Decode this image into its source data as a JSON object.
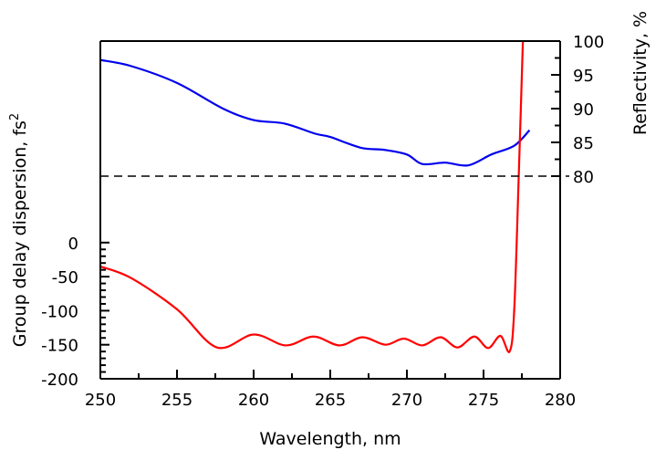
{
  "chart_data": {
    "type": "line",
    "title": "",
    "xlabel": "Wavelength, nm",
    "ylabel_left": "Group delay dispersion, fs",
    "ylabel_left_sup": "2",
    "ylabel_right": "Reflectivity, %",
    "xlim": [
      250,
      280
    ],
    "ylim_left": [
      -200,
      296
    ],
    "ylim_right": [
      80,
      100
    ],
    "x_ticks": [
      "250",
      "255",
      "260",
      "265",
      "270",
      "275",
      "280"
    ],
    "left_ticks": [
      "0",
      "-50",
      "-100",
      "-150",
      "-200"
    ],
    "right_ticks": [
      "100",
      "95",
      "90",
      "85",
      "80"
    ],
    "reference_line": {
      "axis": "right",
      "value": 80,
      "style": "dashed",
      "color": "#000000"
    },
    "series": [
      {
        "name": "Reflectivity",
        "axis": "right",
        "color": "#0000ee",
        "x": [
          250,
          252,
          255,
          258,
          260,
          262,
          264,
          265,
          267,
          268.5,
          270,
          271,
          272.5,
          274,
          275.5,
          277,
          278
        ],
        "y": [
          97.2,
          96.3,
          93.8,
          90,
          88.3,
          87.8,
          86.3,
          85.8,
          84.2,
          83.9,
          83.2,
          81.8,
          82,
          81.6,
          83.2,
          84.5,
          86.8
        ]
      },
      {
        "name": "Group delay dispersion",
        "axis": "left",
        "color": "#ff0000",
        "x": [
          250,
          252,
          255,
          257.6,
          260,
          262.1,
          263.9,
          265.6,
          267.1,
          268.6,
          269.8,
          271,
          272.2,
          273.3,
          274.4,
          275.3,
          276.1,
          276.7,
          277.0,
          277.3,
          277.6
        ],
        "y": [
          -35,
          -52,
          -98,
          -154,
          -135,
          -151,
          -138,
          -151,
          -139,
          -150,
          -141,
          -151,
          -139,
          -154,
          -138,
          -155,
          -137,
          -160,
          -100,
          100,
          320
        ]
      }
    ]
  }
}
